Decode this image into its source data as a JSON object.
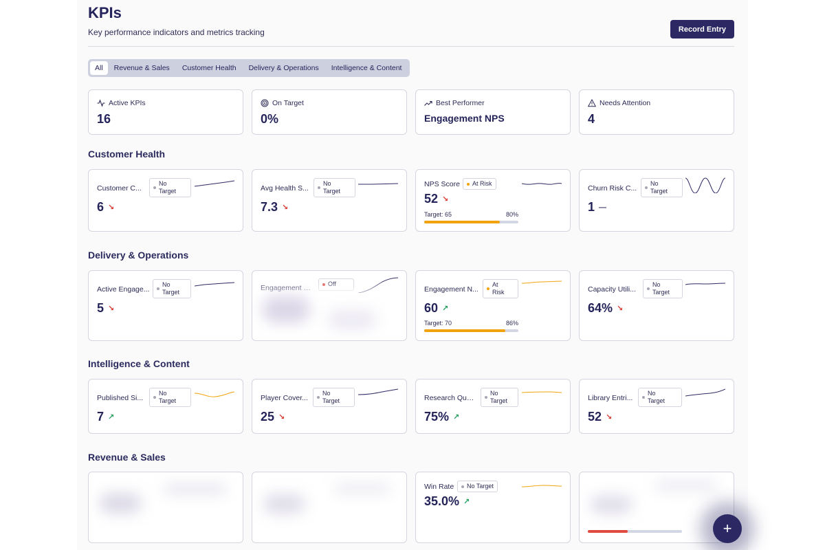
{
  "header": {
    "title": "KPIs",
    "subtitle": "Key performance indicators and metrics tracking",
    "record_button": "Record Entry"
  },
  "tabs": [
    "All",
    "Revenue & Sales",
    "Customer Health",
    "Delivery & Operations",
    "Intelligence & Content"
  ],
  "stats": [
    {
      "label": "Active KPIs",
      "value": "16",
      "icon": "activity-icon"
    },
    {
      "label": "On Target",
      "value": "0%",
      "icon": "target-icon"
    },
    {
      "label": "Best Performer",
      "value": "Engagement NPS",
      "icon": "trending-up-icon"
    },
    {
      "label": "Needs Attention",
      "value": "4",
      "icon": "alert-triangle-icon"
    }
  ],
  "sections": {
    "customer_health": "Customer Health",
    "delivery": "Delivery & Operations",
    "intelligence": "Intelligence & Content",
    "revenue": "Revenue & Sales"
  },
  "badges": {
    "no_target": "No Target",
    "no": "No",
    "target": "Target",
    "at_risk": "At Risk",
    "at": "At",
    "risk": "Risk",
    "off": "Off"
  },
  "kpis": {
    "customer_count": {
      "name": "Customer C...",
      "value": "6",
      "trend": "down"
    },
    "avg_health": {
      "name": "Avg Health S...",
      "value": "7.3",
      "trend": "down"
    },
    "nps_score": {
      "name": "NPS Score",
      "value": "52",
      "trend": "down",
      "target": "Target: 65",
      "pct": "80%",
      "progress": 0.8
    },
    "churn_risk": {
      "name": "Churn Risk C...",
      "value": "1",
      "trend": "flat"
    },
    "active_engagements": {
      "name": "Active Engage...",
      "value": "5",
      "trend": "down"
    },
    "engagement_r": {
      "name": "Engagement R..."
    },
    "engagement_nps": {
      "name": "Engagement N...",
      "value": "60",
      "trend": "up",
      "target": "Target: 70",
      "pct": "86%",
      "progress": 0.86
    },
    "capacity": {
      "name": "Capacity Utili...",
      "value": "64%",
      "trend": "down"
    },
    "published": {
      "name": "Published Si...",
      "value": "7",
      "trend": "up"
    },
    "player_coverage": {
      "name": "Player Cover...",
      "value": "25",
      "trend": "down"
    },
    "research_quality": {
      "name": "Research Qual...",
      "value": "75%",
      "trend": "up"
    },
    "library": {
      "name": "Library Entri...",
      "value": "52",
      "trend": "down"
    },
    "win_rate": {
      "name": "Win Rate",
      "value": "35.0%",
      "trend": "up"
    }
  },
  "trend_glyphs": {
    "down": "↘",
    "up": "↗",
    "flat": "—"
  },
  "colors": {
    "primary": "#2b2863",
    "warning": "#f2a20c",
    "danger": "#d9392f",
    "success": "#1f9d5b"
  },
  "fab_label": "+"
}
